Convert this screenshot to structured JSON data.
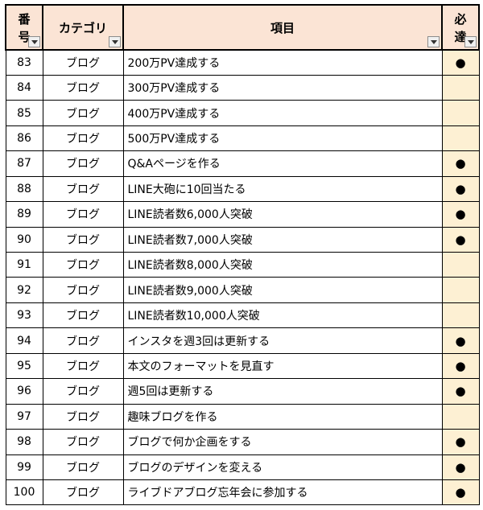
{
  "headers": {
    "number_line1": "番",
    "number_line2": "号",
    "category": "カテゴリ",
    "item": "項目",
    "required_line1": "必",
    "required_line2": "達"
  },
  "rows": [
    {
      "number": "83",
      "category": "ブログ",
      "item": "200万PV達成する",
      "required": "●"
    },
    {
      "number": "84",
      "category": "ブログ",
      "item": "300万PV達成する",
      "required": ""
    },
    {
      "number": "85",
      "category": "ブログ",
      "item": "400万PV達成する",
      "required": ""
    },
    {
      "number": "86",
      "category": "ブログ",
      "item": "500万PV達成する",
      "required": ""
    },
    {
      "number": "87",
      "category": "ブログ",
      "item": "Q&Aページを作る",
      "required": "●"
    },
    {
      "number": "88",
      "category": "ブログ",
      "item": "LINE大砲に10回当たる",
      "required": "●"
    },
    {
      "number": "89",
      "category": "ブログ",
      "item": "LINE読者数6,000人突破",
      "required": "●"
    },
    {
      "number": "90",
      "category": "ブログ",
      "item": "LINE読者数7,000人突破",
      "required": "●"
    },
    {
      "number": "91",
      "category": "ブログ",
      "item": "LINE読者数8,000人突破",
      "required": ""
    },
    {
      "number": "92",
      "category": "ブログ",
      "item": "LINE読者数9,000人突破",
      "required": ""
    },
    {
      "number": "93",
      "category": "ブログ",
      "item": "LINE読者数10,000人突破",
      "required": ""
    },
    {
      "number": "94",
      "category": "ブログ",
      "item": "インスタを週3回は更新する",
      "required": "●"
    },
    {
      "number": "95",
      "category": "ブログ",
      "item": "本文のフォーマットを見直す",
      "required": "●"
    },
    {
      "number": "96",
      "category": "ブログ",
      "item": "週5回は更新する",
      "required": "●"
    },
    {
      "number": "97",
      "category": "ブログ",
      "item": "趣味ブログを作る",
      "required": ""
    },
    {
      "number": "98",
      "category": "ブログ",
      "item": "ブログで何か企画をする",
      "required": "●"
    },
    {
      "number": "99",
      "category": "ブログ",
      "item": "ブログのデザインを変える",
      "required": "●"
    },
    {
      "number": "100",
      "category": "ブログ",
      "item": "ライブドアブログ忘年会に参加する",
      "required": "●"
    }
  ],
  "icons": {
    "filter": "filter-dropdown-icon"
  },
  "colors": {
    "header_bg": "#fbe4d5",
    "required_col_bg": "#fdf0d3"
  }
}
